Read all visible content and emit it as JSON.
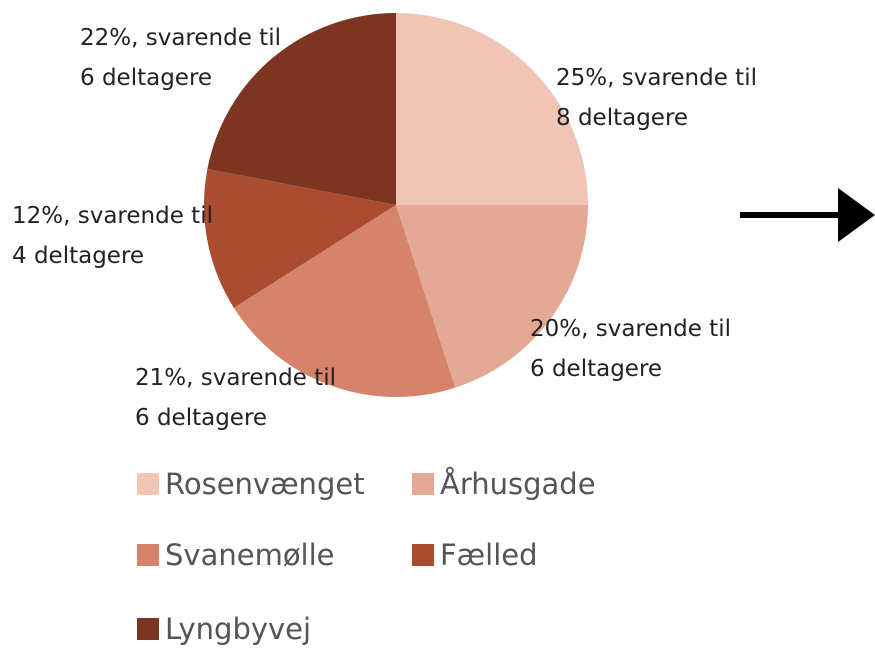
{
  "chart_data": {
    "type": "pie",
    "categories": [
      "Rosenvænget",
      "Århusgade",
      "Svanemølle",
      "Fælled",
      "Lyngbyvej"
    ],
    "values": [
      25,
      20,
      21,
      12,
      22
    ],
    "value_labels": [
      "25%, svarende til 8 deltagere",
      "20%, svarende til 6 deltagere",
      "21%, svarende til 6 deltagere",
      "12%, svarende til 4 deltagere",
      "22%, svarende til 6 deltagere"
    ],
    "colors": [
      "#f0c5b6",
      "#e4a995",
      "#d5836a",
      "#a94c2f",
      "#7b3521"
    ]
  }
}
